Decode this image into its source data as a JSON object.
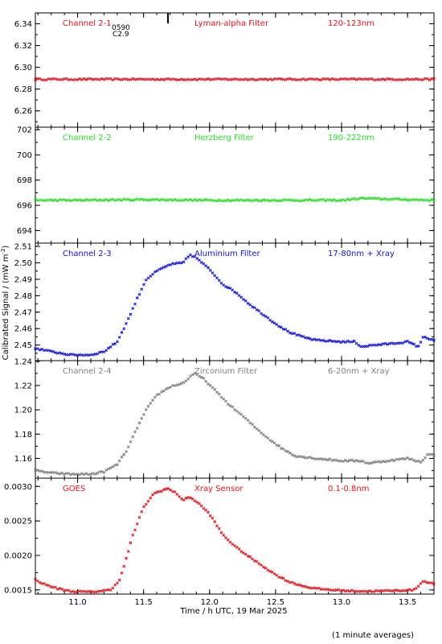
{
  "xlabel": "Time / h UTC, 19 Mar 2025",
  "ylabel": "Calibrated Signal / (mW m",
  "ylabel_sup": "-2",
  "ylabel_close": ")",
  "footnote": "(1 minute averages)",
  "marker_text": [
    "0590",
    "C2.9"
  ],
  "chart_data": [
    {
      "type": "scatter",
      "channel": "Channel 2-1",
      "filter": "Lyman-alpha Filter",
      "band": "120-123nm",
      "color": "#e8101a",
      "ylim": [
        6.245,
        6.35
      ],
      "yticks": [
        6.26,
        6.28,
        6.3,
        6.32,
        6.34
      ],
      "ytick_labels": [
        "6.26",
        "6.28",
        "6.30",
        "6.32",
        "6.34"
      ],
      "xlim": [
        10.68,
        13.7
      ],
      "points": [
        [
          10.68,
          6.289
        ],
        [
          11.0,
          6.289
        ],
        [
          11.5,
          6.289
        ],
        [
          12.0,
          6.289
        ],
        [
          12.5,
          6.289
        ],
        [
          13.0,
          6.289
        ],
        [
          13.7,
          6.289
        ]
      ]
    },
    {
      "type": "scatter",
      "channel": "Channel 2-2",
      "filter": "Herzberg Filter",
      "band": "190-222nm",
      "color": "#22e022",
      "ylim": [
        693.0,
        702.2
      ],
      "yticks": [
        694,
        696,
        698,
        700,
        702
      ],
      "ytick_labels": [
        "694",
        "696",
        "698",
        "700",
        "702"
      ],
      "xlim": [
        10.68,
        13.7
      ],
      "points": [
        [
          10.68,
          696.4
        ],
        [
          11.0,
          696.4
        ],
        [
          11.5,
          696.45
        ],
        [
          12.0,
          696.4
        ],
        [
          12.5,
          696.4
        ],
        [
          13.0,
          696.4
        ],
        [
          13.15,
          696.55
        ],
        [
          13.7,
          696.4
        ]
      ]
    },
    {
      "type": "scatter",
      "channel": "Channel 2-3",
      "filter": "Aluminium Filter",
      "band": "17-80nm + Xray",
      "color": "#1010e0",
      "ylim": [
        2.4405,
        2.512
      ],
      "yticks": [
        2.45,
        2.46,
        2.47,
        2.48,
        2.49,
        2.5,
        2.51
      ],
      "ytick_labels": [
        "2.45",
        "2.46",
        "2.47",
        "2.48",
        "2.49",
        "2.50",
        "2.51"
      ],
      "xlim": [
        10.68,
        13.7
      ],
      "points": [
        [
          10.68,
          2.448
        ],
        [
          10.8,
          2.446
        ],
        [
          10.95,
          2.444
        ],
        [
          11.1,
          2.444
        ],
        [
          11.2,
          2.446
        ],
        [
          11.3,
          2.452
        ],
        [
          11.38,
          2.465
        ],
        [
          11.45,
          2.478
        ],
        [
          11.52,
          2.49
        ],
        [
          11.6,
          2.495
        ],
        [
          11.7,
          2.499
        ],
        [
          11.8,
          2.5
        ],
        [
          11.85,
          2.505
        ],
        [
          11.9,
          2.503
        ],
        [
          12.0,
          2.496
        ],
        [
          12.1,
          2.487
        ],
        [
          12.2,
          2.482
        ],
        [
          12.3,
          2.475
        ],
        [
          12.4,
          2.469
        ],
        [
          12.5,
          2.463
        ],
        [
          12.6,
          2.458
        ],
        [
          12.7,
          2.455
        ],
        [
          12.8,
          2.453
        ],
        [
          13.0,
          2.452
        ],
        [
          13.1,
          2.452
        ],
        [
          13.15,
          2.449
        ],
        [
          13.25,
          2.45
        ],
        [
          13.4,
          2.451
        ],
        [
          13.5,
          2.452
        ],
        [
          13.58,
          2.449
        ],
        [
          13.62,
          2.455
        ],
        [
          13.7,
          2.453
        ]
      ]
    },
    {
      "type": "scatter",
      "channel": "Channel 2-4",
      "filter": "Zirconium Filter",
      "band": "6-20nm + Xray",
      "color": "#7f7f7f",
      "ylim": [
        1.1437,
        1.2405
      ],
      "yticks": [
        1.16,
        1.18,
        1.2,
        1.22,
        1.24
      ],
      "ytick_labels": [
        "1.16",
        "1.18",
        "1.20",
        "1.22",
        "1.24"
      ],
      "xlim": [
        10.68,
        13.7
      ],
      "points": [
        [
          10.68,
          1.15
        ],
        [
          10.8,
          1.148
        ],
        [
          10.95,
          1.147
        ],
        [
          11.1,
          1.147
        ],
        [
          11.2,
          1.149
        ],
        [
          11.3,
          1.155
        ],
        [
          11.38,
          1.168
        ],
        [
          11.45,
          1.185
        ],
        [
          11.52,
          1.2
        ],
        [
          11.6,
          1.212
        ],
        [
          11.7,
          1.219
        ],
        [
          11.8,
          1.222
        ],
        [
          11.88,
          1.23
        ],
        [
          11.95,
          1.226
        ],
        [
          12.05,
          1.215
        ],
        [
          12.15,
          1.204
        ],
        [
          12.25,
          1.195
        ],
        [
          12.35,
          1.185
        ],
        [
          12.45,
          1.176
        ],
        [
          12.55,
          1.168
        ],
        [
          12.65,
          1.162
        ],
        [
          12.8,
          1.16
        ],
        [
          13.0,
          1.158
        ],
        [
          13.15,
          1.158
        ],
        [
          13.2,
          1.156
        ],
        [
          13.35,
          1.158
        ],
        [
          13.5,
          1.16
        ],
        [
          13.6,
          1.157
        ],
        [
          13.65,
          1.163
        ],
        [
          13.7,
          1.163
        ]
      ]
    },
    {
      "type": "scatter",
      "channel": "GOES",
      "filter": "Xray Sensor",
      "band": "0.1-0.8nm",
      "color": "#e8101a",
      "ylim": [
        0.00144,
        0.00312
      ],
      "yticks": [
        0.0015,
        0.002,
        0.0025,
        0.003
      ],
      "ytick_labels": [
        "0.0015",
        "0.0020",
        "0.0025",
        "0.0030"
      ],
      "xlim": [
        10.68,
        13.7
      ],
      "points": [
        [
          10.68,
          0.00165
        ],
        [
          10.75,
          0.00158
        ],
        [
          10.85,
          0.00152
        ],
        [
          10.95,
          0.00148
        ],
        [
          11.1,
          0.00147
        ],
        [
          11.25,
          0.0015
        ],
        [
          11.32,
          0.00165
        ],
        [
          11.36,
          0.0019
        ],
        [
          11.42,
          0.0023
        ],
        [
          11.5,
          0.0027
        ],
        [
          11.58,
          0.0029
        ],
        [
          11.68,
          0.00297
        ],
        [
          11.75,
          0.0029
        ],
        [
          11.8,
          0.0028
        ],
        [
          11.85,
          0.00285
        ],
        [
          11.92,
          0.00275
        ],
        [
          12.0,
          0.0026
        ],
        [
          12.1,
          0.0023
        ],
        [
          12.2,
          0.00212
        ],
        [
          12.3,
          0.00198
        ],
        [
          12.4,
          0.00185
        ],
        [
          12.5,
          0.00172
        ],
        [
          12.6,
          0.00162
        ],
        [
          12.7,
          0.00156
        ],
        [
          12.8,
          0.00152
        ],
        [
          13.0,
          0.00149
        ],
        [
          13.2,
          0.00148
        ],
        [
          13.4,
          0.00149
        ],
        [
          13.55,
          0.0015
        ],
        [
          13.62,
          0.00163
        ],
        [
          13.68,
          0.0016
        ],
        [
          13.7,
          0.00158
        ]
      ]
    }
  ],
  "xticks": [
    11.0,
    11.5,
    12.0,
    12.5,
    13.0,
    13.5
  ],
  "xtick_labels": [
    "11.0",
    "11.5",
    "12.0",
    "12.5",
    "13.0",
    "13.5"
  ]
}
